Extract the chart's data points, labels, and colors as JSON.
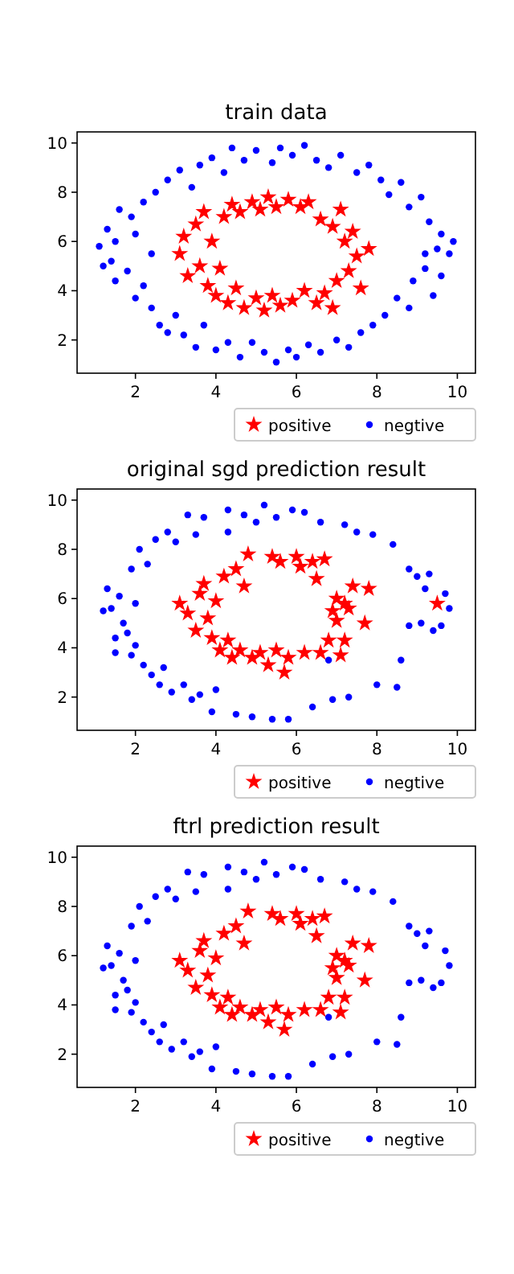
{
  "chart_data": [
    {
      "type": "scatter",
      "title": "train data",
      "xlim": [
        0.55,
        10.45
      ],
      "ylim": [
        0.65,
        10.45
      ],
      "xticks": [
        2,
        4,
        6,
        8,
        10
      ],
      "yticks": [
        2,
        4,
        6,
        8,
        10
      ],
      "legend": "bottom right",
      "series": [
        {
          "name": "positive",
          "color": "#ff0000",
          "marker": "star",
          "x": [
            3.2,
            3.1,
            3.3,
            3.5,
            3.6,
            3.7,
            3.8,
            3.9,
            4.0,
            4.1,
            4.2,
            4.3,
            4.4,
            4.5,
            4.6,
            4.7,
            4.9,
            5.0,
            5.1,
            5.2,
            5.3,
            5.4,
            5.5,
            5.6,
            5.8,
            5.9,
            6.1,
            6.2,
            6.3,
            6.5,
            6.6,
            6.7,
            6.9,
            7.0,
            7.1,
            7.2,
            7.3,
            7.4,
            7.5,
            7.6,
            7.8,
            6.9
          ],
          "values": [
            6.2,
            5.5,
            4.6,
            6.7,
            5.0,
            7.2,
            4.2,
            6.0,
            3.8,
            4.9,
            7.0,
            3.5,
            7.5,
            4.1,
            7.2,
            3.3,
            7.6,
            3.7,
            7.3,
            3.2,
            7.8,
            3.8,
            7.4,
            3.4,
            7.7,
            3.6,
            7.4,
            4.0,
            7.6,
            3.5,
            6.9,
            3.9,
            6.6,
            4.4,
            7.3,
            6.0,
            4.8,
            6.4,
            5.4,
            4.1,
            5.7,
            3.3
          ]
        },
        {
          "name": "negtive",
          "color": "#0000ff",
          "marker": "circle",
          "x": [
            1.1,
            1.3,
            1.4,
            1.5,
            1.6,
            1.5,
            1.8,
            1.9,
            2.0,
            2.0,
            2.2,
            2.2,
            2.4,
            2.5,
            2.4,
            2.6,
            2.8,
            2.8,
            3.0,
            3.1,
            3.2,
            3.4,
            3.5,
            3.6,
            3.7,
            3.9,
            4.0,
            4.2,
            4.3,
            4.4,
            4.6,
            4.7,
            4.9,
            5.0,
            5.2,
            5.4,
            5.5,
            5.6,
            5.8,
            5.9,
            6.0,
            6.2,
            6.3,
            6.5,
            6.6,
            6.8,
            7.0,
            7.1,
            7.3,
            7.5,
            7.6,
            7.8,
            7.9,
            8.1,
            8.2,
            8.3,
            8.5,
            8.6,
            8.8,
            8.8,
            8.9,
            9.1,
            9.2,
            9.3,
            9.4,
            9.5,
            9.6,
            9.8,
            9.9,
            9.6,
            9.2,
            1.2
          ],
          "values": [
            5.8,
            6.5,
            5.2,
            4.4,
            7.3,
            6.0,
            4.8,
            7.0,
            3.7,
            6.3,
            7.6,
            4.2,
            3.3,
            8.0,
            5.5,
            2.6,
            8.5,
            2.3,
            3.0,
            8.9,
            2.2,
            8.2,
            1.7,
            9.1,
            2.6,
            9.4,
            1.6,
            8.8,
            1.9,
            9.8,
            1.3,
            9.3,
            1.9,
            9.7,
            1.5,
            9.2,
            1.1,
            9.8,
            1.6,
            9.5,
            1.3,
            9.9,
            1.8,
            9.3,
            1.5,
            9.0,
            2.0,
            9.5,
            1.7,
            8.8,
            2.3,
            9.1,
            2.6,
            8.5,
            3.0,
            7.9,
            3.7,
            8.4,
            3.3,
            7.4,
            4.4,
            7.8,
            4.9,
            6.8,
            3.8,
            5.7,
            6.3,
            5.5,
            6.0,
            4.6,
            5.5,
            5.0
          ]
        }
      ]
    },
    {
      "type": "scatter",
      "title": "original sgd prediction result",
      "xlim": [
        0.55,
        10.45
      ],
      "ylim": [
        0.65,
        10.45
      ],
      "xticks": [
        2,
        4,
        6,
        8,
        10
      ],
      "yticks": [
        2,
        4,
        6,
        8,
        10
      ],
      "legend": "bottom right",
      "series": [
        {
          "name": "positive",
          "color": "#ff0000",
          "marker": "star",
          "x": [
            3.1,
            3.3,
            3.5,
            3.6,
            3.7,
            3.8,
            3.9,
            4.0,
            4.1,
            4.2,
            4.3,
            4.4,
            4.5,
            4.6,
            4.7,
            4.8,
            4.9,
            5.1,
            5.3,
            5.4,
            5.5,
            5.6,
            5.7,
            5.8,
            6.0,
            6.1,
            6.2,
            6.4,
            6.5,
            6.6,
            6.7,
            6.8,
            6.9,
            7.0,
            7.1,
            7.2,
            7.3,
            7.4,
            7.7,
            7.8,
            9.5,
            7.2,
            7.0
          ],
          "values": [
            5.8,
            5.4,
            4.7,
            6.2,
            6.6,
            5.2,
            4.4,
            5.9,
            3.9,
            6.9,
            4.3,
            3.6,
            7.2,
            3.9,
            6.5,
            7.8,
            3.6,
            3.8,
            3.3,
            7.7,
            3.9,
            7.5,
            3.0,
            3.6,
            7.7,
            7.3,
            3.8,
            7.5,
            6.8,
            3.8,
            7.6,
            4.3,
            5.5,
            6.0,
            3.7,
            5.8,
            5.6,
            6.5,
            5.0,
            6.4,
            5.8,
            4.3,
            5.1
          ]
        },
        {
          "name": "negtive",
          "color": "#0000ff",
          "marker": "circle",
          "x": [
            1.2,
            1.3,
            1.4,
            1.5,
            1.5,
            1.6,
            1.7,
            1.8,
            1.9,
            1.9,
            2.0,
            2.1,
            2.0,
            2.2,
            2.3,
            2.4,
            2.5,
            2.6,
            2.7,
            2.8,
            2.9,
            3.0,
            3.2,
            3.3,
            3.4,
            3.5,
            3.6,
            3.7,
            3.9,
            4.0,
            4.3,
            4.3,
            4.5,
            4.7,
            4.9,
            5.0,
            5.2,
            5.4,
            5.5,
            5.8,
            5.9,
            6.2,
            6.4,
            6.6,
            6.9,
            7.2,
            7.5,
            7.3,
            7.9,
            8.0,
            8.4,
            8.5,
            8.8,
            9.0,
            8.6,
            9.1,
            9.3,
            9.4,
            9.6,
            9.7,
            9.8,
            9.2,
            6.8,
            8.8
          ],
          "values": [
            5.5,
            6.4,
            5.6,
            4.4,
            3.8,
            6.1,
            5.0,
            4.6,
            7.2,
            3.7,
            5.8,
            8.0,
            4.1,
            3.3,
            7.4,
            2.9,
            8.4,
            2.5,
            3.2,
            8.7,
            2.2,
            8.3,
            2.5,
            9.4,
            1.9,
            8.6,
            2.1,
            9.3,
            1.4,
            2.3,
            8.7,
            9.6,
            1.3,
            9.4,
            1.2,
            9.1,
            9.8,
            1.1,
            9.3,
            1.1,
            9.6,
            9.5,
            1.6,
            9.1,
            1.9,
            9.0,
            8.7,
            2.0,
            8.6,
            2.5,
            8.2,
            2.4,
            7.2,
            6.9,
            3.5,
            5.0,
            7.0,
            4.7,
            4.9,
            6.2,
            5.6,
            6.4,
            3.5,
            4.9
          ]
        }
      ]
    },
    {
      "type": "scatter",
      "title": "ftrl prediction result",
      "xlim": [
        0.55,
        10.45
      ],
      "ylim": [
        0.65,
        10.45
      ],
      "xticks": [
        2,
        4,
        6,
        8,
        10
      ],
      "yticks": [
        2,
        4,
        6,
        8,
        10
      ],
      "legend": "bottom right",
      "series": [
        {
          "name": "positive",
          "color": "#ff0000",
          "marker": "star",
          "x": [
            3.1,
            3.3,
            3.5,
            3.6,
            3.7,
            3.8,
            3.9,
            4.0,
            4.1,
            4.2,
            4.3,
            4.4,
            4.5,
            4.6,
            4.7,
            4.8,
            4.9,
            5.1,
            5.3,
            5.4,
            5.5,
            5.6,
            5.7,
            5.8,
            6.0,
            6.1,
            6.2,
            6.4,
            6.5,
            6.6,
            6.7,
            6.8,
            6.9,
            7.0,
            7.1,
            7.2,
            7.3,
            7.4,
            7.7,
            7.8,
            7.2,
            7.0
          ],
          "values": [
            5.8,
            5.4,
            4.7,
            6.2,
            6.6,
            5.2,
            4.4,
            5.9,
            3.9,
            6.9,
            4.3,
            3.6,
            7.2,
            3.9,
            6.5,
            7.8,
            3.6,
            3.8,
            3.3,
            7.7,
            3.9,
            7.5,
            3.0,
            3.6,
            7.7,
            7.3,
            3.8,
            7.5,
            6.8,
            3.8,
            7.6,
            4.3,
            5.5,
            6.0,
            3.7,
            5.8,
            5.6,
            6.5,
            5.0,
            6.4,
            4.3,
            5.1
          ]
        },
        {
          "name": "negtive",
          "color": "#0000ff",
          "marker": "circle",
          "x": [
            1.2,
            1.3,
            1.4,
            1.5,
            1.5,
            1.6,
            1.7,
            1.8,
            1.9,
            1.9,
            2.0,
            2.1,
            2.0,
            2.2,
            2.3,
            2.4,
            2.5,
            2.6,
            2.7,
            2.8,
            2.9,
            3.0,
            3.2,
            3.3,
            3.4,
            3.5,
            3.6,
            3.7,
            3.9,
            4.0,
            4.3,
            4.3,
            4.5,
            4.7,
            4.9,
            5.0,
            5.2,
            5.4,
            5.5,
            5.8,
            5.9,
            6.2,
            6.4,
            6.6,
            6.9,
            7.2,
            7.5,
            7.3,
            7.9,
            8.0,
            8.4,
            8.5,
            8.8,
            9.0,
            8.6,
            9.1,
            9.3,
            9.4,
            9.6,
            9.7,
            9.8,
            9.2,
            6.8,
            8.8
          ],
          "values": [
            5.5,
            6.4,
            5.6,
            4.4,
            3.8,
            6.1,
            5.0,
            4.6,
            7.2,
            3.7,
            5.8,
            8.0,
            4.1,
            3.3,
            7.4,
            2.9,
            8.4,
            2.5,
            3.2,
            8.7,
            2.2,
            8.3,
            2.5,
            9.4,
            1.9,
            8.6,
            2.1,
            9.3,
            1.4,
            2.3,
            8.7,
            9.6,
            1.3,
            9.4,
            1.2,
            9.1,
            9.8,
            1.1,
            9.3,
            1.1,
            9.6,
            9.5,
            1.6,
            9.1,
            1.9,
            9.0,
            8.7,
            2.0,
            8.6,
            2.5,
            8.2,
            2.4,
            7.2,
            6.9,
            3.5,
            5.0,
            7.0,
            4.7,
            4.9,
            6.2,
            5.6,
            6.4,
            3.5,
            4.9
          ]
        }
      ]
    }
  ]
}
